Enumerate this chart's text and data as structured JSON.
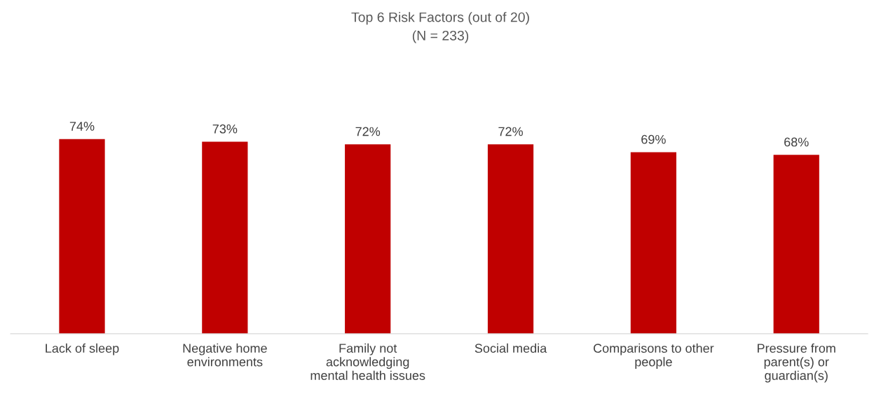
{
  "chart_data": {
    "type": "bar",
    "title": "Top 6 Risk Factors (out of 20)",
    "subtitle": "(N = 233)",
    "categories": [
      "Lack of sleep",
      "Negative home\nenvironments",
      "Family not\nacknowledging\nmental health issues",
      "Social media",
      "Comparisons to other\npeople",
      "Pressure from\nparent(s) or\nguardian(s)"
    ],
    "values": [
      74,
      73,
      72,
      72,
      69,
      68
    ],
    "value_labels": [
      "74%",
      "73%",
      "72%",
      "72%",
      "69%",
      "68%"
    ],
    "color": "#c00000"
  }
}
